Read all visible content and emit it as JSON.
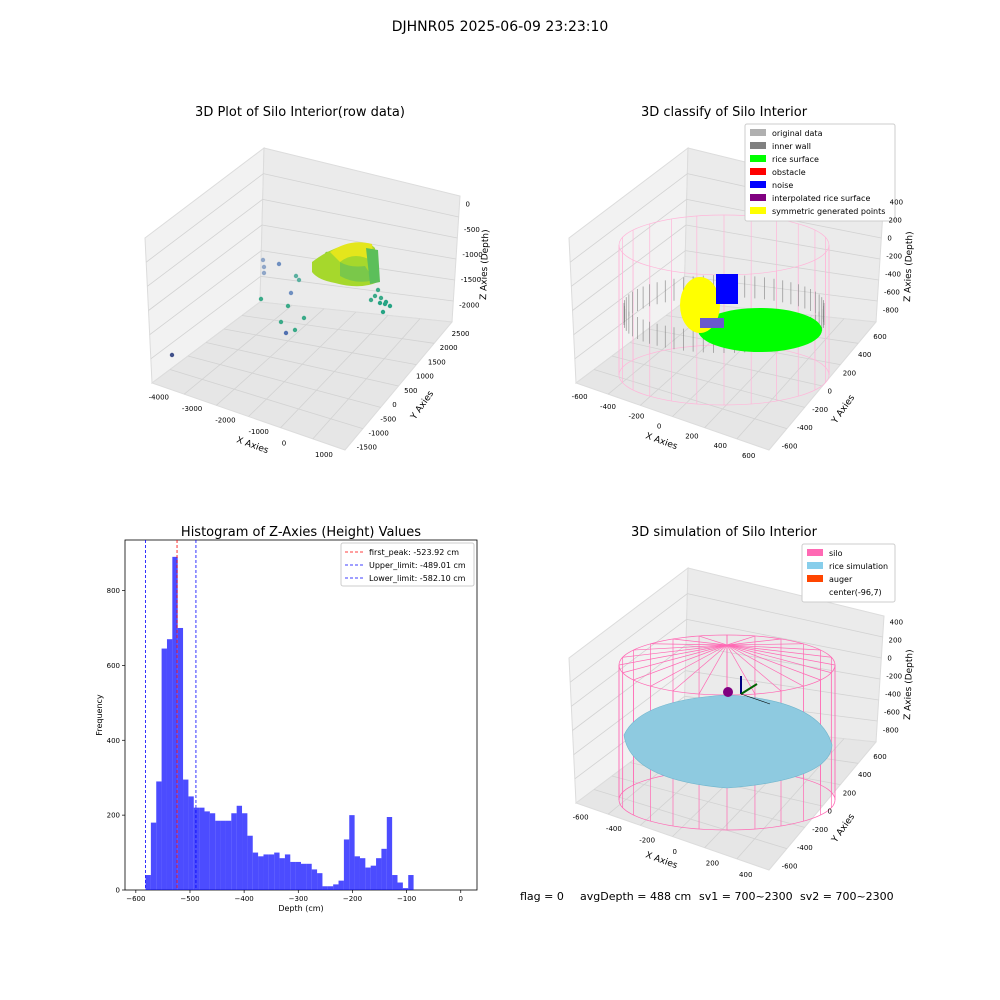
{
  "suptitle": "DJHNR05 2025-06-09 23:23:10",
  "footer": {
    "flag": "flag = 0",
    "avg_depth": "avgDepth = 488 cm",
    "sv1": "sv1 = 700~2300",
    "sv2": "sv2 = 700~2300"
  },
  "panel1": {
    "title": "3D Plot of Silo Interior(row data)",
    "xlabel": "X Axies",
    "ylabel": "Y Axies",
    "zlabel": "Z Axies (Depth)",
    "xticks": [
      "-4000",
      "-3000",
      "-2000",
      "-1000",
      "0",
      "1000"
    ],
    "yticks": [
      "-1500",
      "-1000",
      "-500",
      "0",
      "500",
      "1000",
      "1500",
      "2000",
      "2500"
    ],
    "zticks": [
      "0",
      "-500",
      "-1000",
      "-1500",
      "-2000"
    ]
  },
  "panel2": {
    "title": "3D classify of Silo Interior",
    "xlabel": "X Axies",
    "ylabel": "Y Axies",
    "zlabel": "Z Axies (Depth)",
    "xticks": [
      "-600",
      "-400",
      "-200",
      "0",
      "200",
      "400",
      "600"
    ],
    "yticks": [
      "-600",
      "-400",
      "-200",
      "0",
      "200",
      "400",
      "600"
    ],
    "zticks": [
      "400",
      "200",
      "0",
      "-200",
      "-400",
      "-600",
      "-800"
    ],
    "legend": [
      {
        "label": "original data",
        "color": "#b0b0b0"
      },
      {
        "label": "inner wall",
        "color": "#808080"
      },
      {
        "label": "rice surface",
        "color": "#00ff00"
      },
      {
        "label": "obstacle",
        "color": "#ff0000"
      },
      {
        "label": "noise",
        "color": "#0000ff"
      },
      {
        "label": "interpolated rice surface",
        "color": "#800080"
      },
      {
        "label": "symmetric generated points",
        "color": "#ffff00"
      }
    ]
  },
  "panel4": {
    "title": "3D simulation of Silo Interior",
    "xlabel": "X Axies",
    "ylabel": "Y Axies",
    "zlabel": "Z Axies (Depth)",
    "xticks": [
      "-600",
      "-400",
      "-200",
      "0",
      "200",
      "400"
    ],
    "yticks": [
      "-600",
      "-400",
      "-200",
      "0",
      "200",
      "400",
      "600"
    ],
    "zticks": [
      "400",
      "200",
      "0",
      "-200",
      "-400",
      "-600",
      "-800"
    ],
    "legend": [
      {
        "label": "silo",
        "color": "#ff69b4"
      },
      {
        "label": "rice simulation",
        "color": "#87ceeb"
      },
      {
        "label": "auger",
        "color": "#ff4500"
      },
      {
        "label": "center(-96,7)",
        "color": ""
      }
    ]
  },
  "chart_data": {
    "type": "bar",
    "title": "Histogram of Z-Axies (Height) Values",
    "xlabel": "Depth (cm)",
    "ylabel": "Frequency",
    "xlim": [
      -620,
      30
    ],
    "ylim": [
      0,
      935
    ],
    "xticks": [
      -600,
      -500,
      -400,
      -300,
      -200,
      -100,
      0
    ],
    "yticks": [
      0,
      200,
      400,
      600,
      800
    ],
    "bar_color": "#0000ff",
    "bar_width": 9.9,
    "bin_start": -582.1,
    "values": [
      40,
      180,
      290,
      645,
      670,
      890,
      700,
      295,
      250,
      220,
      220,
      210,
      205,
      185,
      185,
      185,
      205,
      225,
      205,
      145,
      100,
      90,
      95,
      95,
      100,
      85,
      95,
      75,
      75,
      70,
      70,
      55,
      45,
      10,
      10,
      15,
      25,
      135,
      200,
      90,
      85,
      60,
      65,
      85,
      110,
      195,
      40,
      20,
      5,
      40
    ],
    "vlines": [
      {
        "name": "first_peak: -523.92 cm",
        "x": -523.92,
        "color": "#ff0000"
      },
      {
        "name": "Upper_limit: -489.01 cm",
        "x": -489.01,
        "color": "#0000ff"
      },
      {
        "name": "Lower_limit: -582.10 cm",
        "x": -582.1,
        "color": "#0000ff"
      }
    ],
    "legend": "top-right"
  }
}
